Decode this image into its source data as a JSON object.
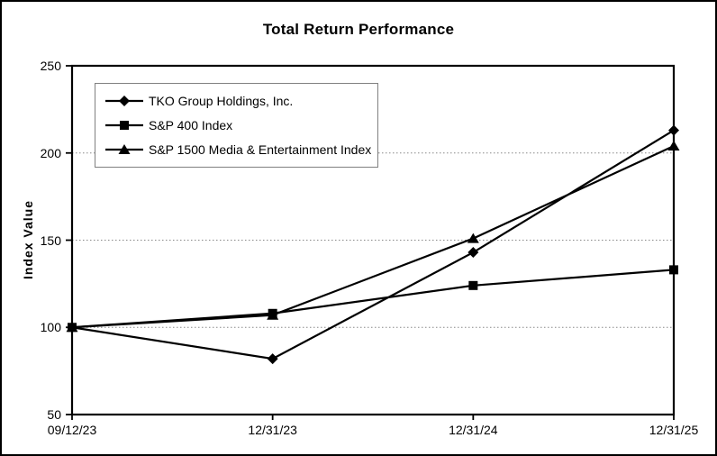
{
  "chart_data": {
    "type": "line",
    "title": "Total Return Performance",
    "xlabel": "",
    "ylabel": "Index Value",
    "categories": [
      "09/12/23",
      "12/31/23",
      "12/31/24",
      "12/31/25"
    ],
    "series": [
      {
        "name": "TKO Group Holdings, Inc.",
        "marker": "diamond",
        "color": "#000000",
        "values": [
          100,
          82,
          143,
          213
        ]
      },
      {
        "name": "S&P 400 Index",
        "marker": "square",
        "color": "#000000",
        "values": [
          100,
          108,
          124,
          133
        ]
      },
      {
        "name": "S&P 1500 Media & Entertainment Index",
        "marker": "triangle",
        "color": "#000000",
        "values": [
          100,
          107,
          151,
          204
        ]
      }
    ],
    "ylim": [
      50,
      250
    ],
    "yticks": [
      50,
      100,
      150,
      200,
      250
    ],
    "gridlines": {
      "values": [
        100,
        150,
        200
      ],
      "style": "dotted",
      "color": "#888888"
    },
    "legend_position": "top-left",
    "frame_color": "#000000",
    "background": "#ffffff"
  }
}
